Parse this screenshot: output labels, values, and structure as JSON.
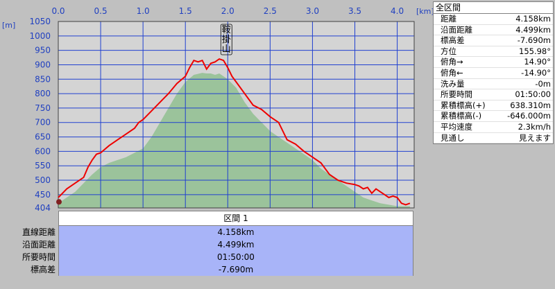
{
  "chart_data": {
    "type": "area",
    "x_unit": "[km]",
    "y_unit": "[m]",
    "xlim": [
      0.0,
      4.2
    ],
    "ylim": [
      404,
      1050
    ],
    "x_ticks": [
      "0.0",
      "0.5",
      "1.0",
      "1.5",
      "2.0",
      "2.5",
      "3.0",
      "3.5",
      "4.0"
    ],
    "y_ticks": [
      "404",
      "450",
      "500",
      "550",
      "600",
      "650",
      "700",
      "750",
      "800",
      "850",
      "900",
      "950",
      "1000",
      "1050"
    ],
    "peak_label": "鞍掛山",
    "peak_x": 2.0,
    "colors": {
      "plot_bg": "#d4d4d4",
      "route": "#ee0000",
      "terrain": "#90c090",
      "grid": "#2040d0"
    },
    "series": [
      {
        "values_kind": "route",
        "x": [
          0.0,
          0.05,
          0.1,
          0.2,
          0.3,
          0.35,
          0.4,
          0.45,
          0.5,
          0.6,
          0.7,
          0.8,
          0.9,
          0.95,
          1.0,
          1.1,
          1.2,
          1.3,
          1.4,
          1.5,
          1.55,
          1.6,
          1.65,
          1.7,
          1.75,
          1.8,
          1.85,
          1.9,
          1.95,
          2.0,
          2.05,
          2.1,
          2.2,
          2.3,
          2.4,
          2.5,
          2.6,
          2.7,
          2.8,
          2.9,
          3.0,
          3.1,
          3.2,
          3.3,
          3.4,
          3.5,
          3.55,
          3.6,
          3.65,
          3.7,
          3.75,
          3.8,
          3.85,
          3.9,
          3.95,
          4.0,
          4.05,
          4.1,
          4.15
        ],
        "y": [
          440,
          455,
          470,
          490,
          510,
          545,
          570,
          590,
          595,
          620,
          640,
          660,
          680,
          700,
          710,
          740,
          770,
          800,
          835,
          860,
          890,
          915,
          910,
          915,
          885,
          905,
          910,
          920,
          915,
          890,
          860,
          840,
          800,
          760,
          745,
          720,
          700,
          640,
          625,
          600,
          580,
          560,
          520,
          500,
          490,
          485,
          480,
          470,
          475,
          455,
          470,
          460,
          450,
          440,
          445,
          440,
          420,
          415,
          420
        ]
      },
      {
        "values_kind": "terrain",
        "x": [
          0.0,
          0.1,
          0.2,
          0.3,
          0.4,
          0.5,
          0.6,
          0.7,
          0.8,
          0.9,
          1.0,
          1.1,
          1.2,
          1.3,
          1.4,
          1.5,
          1.6,
          1.7,
          1.75,
          1.8,
          1.85,
          1.9,
          1.95,
          2.0,
          2.1,
          2.2,
          2.3,
          2.4,
          2.5,
          2.6,
          2.7,
          2.8,
          2.9,
          3.0,
          3.1,
          3.2,
          3.3,
          3.4,
          3.5,
          3.6,
          3.7,
          3.8,
          3.9,
          4.0,
          4.1,
          4.15
        ],
        "y": [
          420,
          440,
          460,
          490,
          520,
          545,
          560,
          570,
          580,
          595,
          610,
          650,
          700,
          750,
          800,
          840,
          865,
          872,
          870,
          870,
          865,
          870,
          860,
          850,
          820,
          770,
          730,
          700,
          670,
          650,
          630,
          610,
          590,
          570,
          540,
          520,
          500,
          480,
          460,
          440,
          430,
          420,
          415,
          410,
          410,
          410
        ]
      }
    ]
  },
  "section": {
    "header": "区間 1",
    "rows": [
      {
        "label": "直線距離",
        "value": "4.158km"
      },
      {
        "label": "沿面距離",
        "value": "4.499km"
      },
      {
        "label": "所要時間",
        "value": "01:50:00"
      },
      {
        "label": "標高差",
        "value": "-7.690m"
      }
    ]
  },
  "summary": {
    "title": "全区間",
    "rows": [
      {
        "label": "距離",
        "value": "4.158km"
      },
      {
        "label": "沿面距離",
        "value": "4.499km"
      },
      {
        "label": "標高差",
        "value": "-7.690m"
      },
      {
        "label": "方位",
        "value": "155.98°"
      },
      {
        "label": "俯角→",
        "value": "14.90°"
      },
      {
        "label": "俯角←",
        "value": "-14.90°"
      },
      {
        "label": "洗み量",
        "value": "-0m"
      },
      {
        "label": "所要時間",
        "value": "01:50:00"
      },
      {
        "label": "累積標高(+)",
        "value": "638.310m"
      },
      {
        "label": "累積標高(-)",
        "value": "-646.000m"
      },
      {
        "label": "平均速度",
        "value": "2.3km/h"
      },
      {
        "label": "見通し",
        "value": "見えます"
      }
    ]
  }
}
